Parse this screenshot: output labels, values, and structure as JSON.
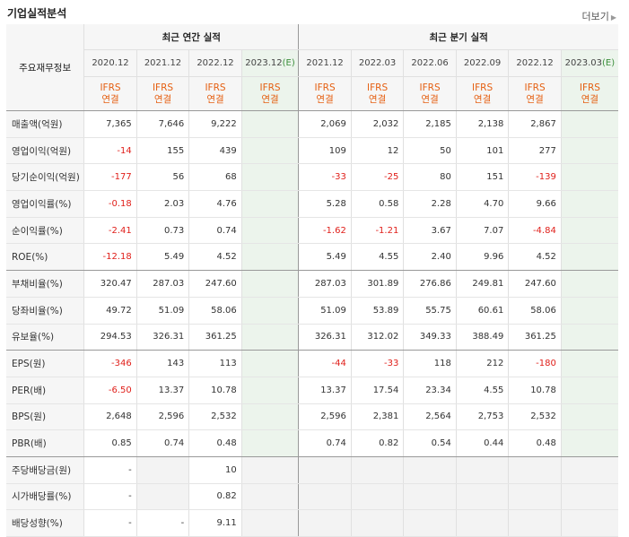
{
  "title": "기업실적분석",
  "more_label": "더보기",
  "row_header_label": "주요재무정보",
  "annual_label": "최근 연간 실적",
  "quarter_label": "최근 분기 실적",
  "annual_periods": [
    "2020.12",
    "2021.12",
    "2022.12",
    "2023.12(E)"
  ],
  "quarter_periods": [
    "2021.12",
    "2022.03",
    "2022.06",
    "2022.09",
    "2022.12",
    "2023.03(E)"
  ],
  "ifrs_top": "IFRS",
  "ifrs_bottom": "연결",
  "rows": [
    {
      "label": "매출액(억원)",
      "annual": [
        "7,365",
        "7,646",
        "9,222",
        ""
      ],
      "quarter": [
        "2,069",
        "2,032",
        "2,185",
        "2,138",
        "2,867",
        ""
      ]
    },
    {
      "label": "영업이익(억원)",
      "annual": [
        "-14",
        "155",
        "439",
        ""
      ],
      "quarter": [
        "109",
        "12",
        "50",
        "101",
        "277",
        ""
      ]
    },
    {
      "label": "당기순이익(억원)",
      "annual": [
        "-177",
        "56",
        "68",
        ""
      ],
      "quarter": [
        "-33",
        "-25",
        "80",
        "151",
        "-139",
        ""
      ]
    },
    {
      "label": "영업이익률(%)",
      "annual": [
        "-0.18",
        "2.03",
        "4.76",
        ""
      ],
      "quarter": [
        "5.28",
        "0.58",
        "2.28",
        "4.70",
        "9.66",
        ""
      ]
    },
    {
      "label": "순이익률(%)",
      "annual": [
        "-2.41",
        "0.73",
        "0.74",
        ""
      ],
      "quarter": [
        "-1.62",
        "-1.21",
        "3.67",
        "7.07",
        "-4.84",
        ""
      ]
    },
    {
      "label": "ROE(%)",
      "annual": [
        "-12.18",
        "5.49",
        "4.52",
        ""
      ],
      "quarter": [
        "5.49",
        "4.55",
        "2.40",
        "9.96",
        "4.52",
        ""
      ]
    },
    {
      "label": "부채비율(%)",
      "annual": [
        "320.47",
        "287.03",
        "247.60",
        ""
      ],
      "quarter": [
        "287.03",
        "301.89",
        "276.86",
        "249.81",
        "247.60",
        ""
      ]
    },
    {
      "label": "당좌비율(%)",
      "annual": [
        "49.72",
        "51.09",
        "58.06",
        ""
      ],
      "quarter": [
        "51.09",
        "53.89",
        "55.75",
        "60.61",
        "58.06",
        ""
      ]
    },
    {
      "label": "유보율(%)",
      "annual": [
        "294.53",
        "326.31",
        "361.25",
        ""
      ],
      "quarter": [
        "326.31",
        "312.02",
        "349.33",
        "388.49",
        "361.25",
        ""
      ]
    },
    {
      "label": "EPS(원)",
      "annual": [
        "-346",
        "143",
        "113",
        ""
      ],
      "quarter": [
        "-44",
        "-33",
        "118",
        "212",
        "-180",
        ""
      ]
    },
    {
      "label": "PER(배)",
      "annual": [
        "-6.50",
        "13.37",
        "10.78",
        ""
      ],
      "quarter": [
        "13.37",
        "17.54",
        "23.34",
        "4.55",
        "10.78",
        ""
      ]
    },
    {
      "label": "BPS(원)",
      "annual": [
        "2,648",
        "2,596",
        "2,532",
        ""
      ],
      "quarter": [
        "2,596",
        "2,381",
        "2,564",
        "2,753",
        "2,532",
        ""
      ]
    },
    {
      "label": "PBR(배)",
      "annual": [
        "0.85",
        "0.74",
        "0.48",
        ""
      ],
      "quarter": [
        "0.74",
        "0.82",
        "0.54",
        "0.44",
        "0.48",
        ""
      ]
    },
    {
      "label": "주당배당금(원)",
      "annual": [
        "-",
        "",
        "10",
        ""
      ],
      "quarter": [
        "",
        "",
        "",
        "",
        "",
        ""
      ]
    },
    {
      "label": "시가배당률(%)",
      "annual": [
        "-",
        "",
        "0.82",
        ""
      ],
      "quarter": [
        "",
        "",
        "",
        "",
        "",
        ""
      ]
    },
    {
      "label": "배당성향(%)",
      "annual": [
        "-",
        "-",
        "9.11",
        ""
      ],
      "quarter": [
        "",
        "",
        "",
        "",
        "",
        ""
      ]
    }
  ],
  "colors": {
    "negative": "#e0201b",
    "ifrs": "#e55f11",
    "estimate": "#3a8e3a"
  }
}
